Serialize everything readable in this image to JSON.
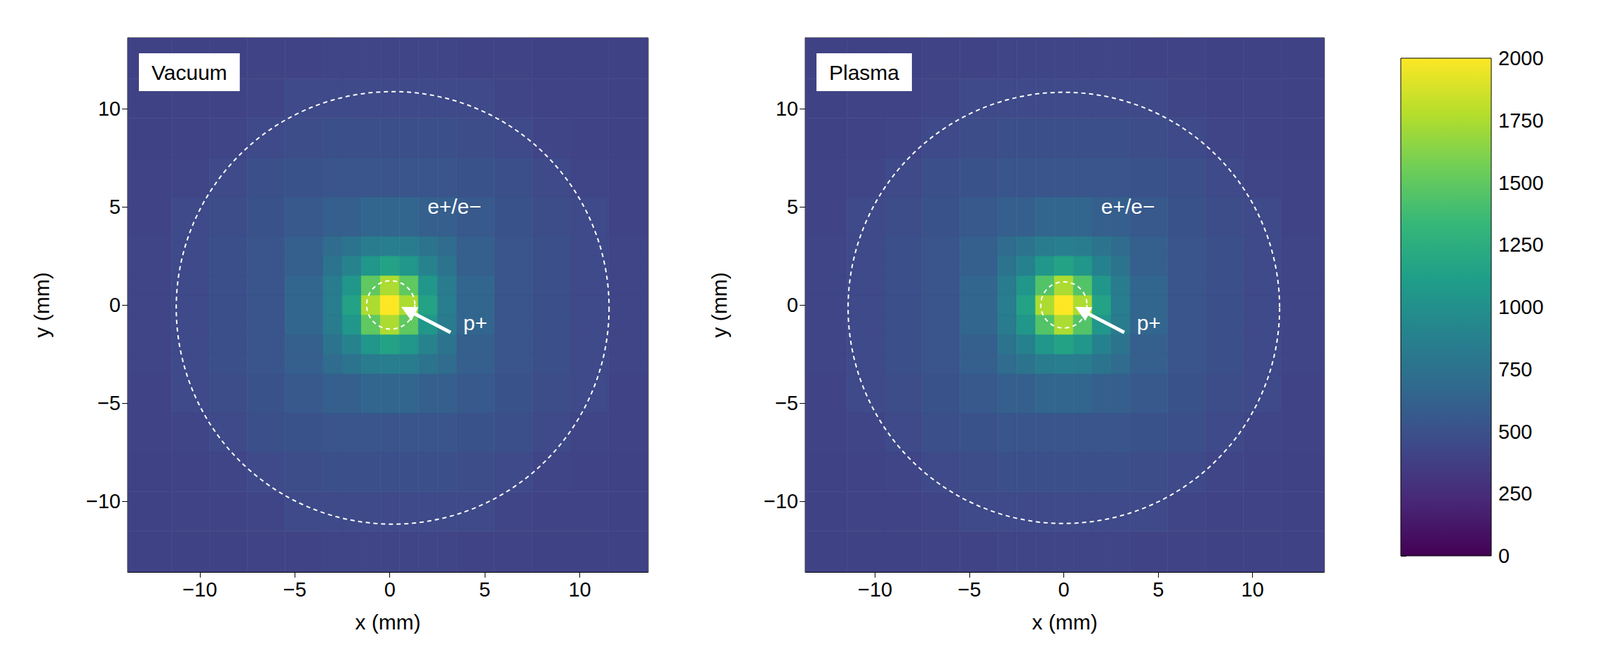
{
  "chart_data": [
    {
      "type": "heatmap",
      "title": "Vacuum",
      "xlabel": "x (mm)",
      "ylabel": "y (mm)",
      "xlim": [
        -13.8,
        13.6
      ],
      "ylim": [
        -13.6,
        13.6
      ],
      "xticks": [
        {
          "value": -10,
          "label": "−10"
        },
        {
          "value": -5,
          "label": "−5"
        },
        0,
        5,
        10
      ],
      "yticks": [
        {
          "value": -10,
          "label": "−10"
        },
        {
          "value": -5,
          "label": "−5"
        },
        0,
        5,
        10
      ],
      "cells": {
        "x_edges": [
          -13.8,
          -11.5,
          -9.5,
          -7.5,
          -5.5,
          -3.5,
          -2.5,
          -1.5,
          -0.5,
          0.5,
          1.5,
          2.5,
          3.5,
          5.5,
          7.5,
          9.5,
          11.5,
          13.6
        ],
        "y_edges": [
          -13.6,
          -11.5,
          -9.5,
          -7.5,
          -5.5,
          -3.5,
          -2.5,
          -1.5,
          -0.5,
          0.5,
          1.5,
          2.5,
          3.5,
          5.5,
          7.5,
          9.5,
          11.5,
          13.6
        ],
        "values": [
          [
            400,
            400,
            400,
            410,
            410,
            420,
            420,
            420,
            420,
            420,
            420,
            420,
            410,
            410,
            400,
            400,
            400
          ],
          [
            400,
            410,
            410,
            420,
            450,
            450,
            450,
            450,
            450,
            450,
            450,
            450,
            450,
            420,
            410,
            410,
            400
          ],
          [
            400,
            410,
            420,
            450,
            470,
            490,
            490,
            490,
            490,
            490,
            490,
            490,
            470,
            450,
            420,
            410,
            400
          ],
          [
            410,
            420,
            450,
            490,
            510,
            530,
            530,
            530,
            530,
            530,
            530,
            530,
            510,
            490,
            450,
            420,
            410
          ],
          [
            410,
            450,
            470,
            510,
            560,
            600,
            600,
            650,
            650,
            650,
            600,
            600,
            560,
            510,
            470,
            450,
            410
          ],
          [
            420,
            450,
            490,
            530,
            600,
            700,
            760,
            830,
            850,
            830,
            760,
            700,
            600,
            530,
            490,
            450,
            420
          ],
          [
            420,
            450,
            490,
            530,
            600,
            760,
            900,
            1050,
            1150,
            1050,
            900,
            760,
            600,
            530,
            490,
            450,
            420
          ],
          [
            420,
            450,
            490,
            530,
            650,
            830,
            1050,
            1500,
            1750,
            1500,
            1050,
            830,
            650,
            530,
            490,
            450,
            420
          ],
          [
            420,
            450,
            490,
            530,
            650,
            850,
            1150,
            1750,
            2000,
            1750,
            1150,
            850,
            650,
            530,
            490,
            450,
            420
          ],
          [
            420,
            450,
            490,
            530,
            650,
            830,
            1050,
            1500,
            1750,
            1500,
            1050,
            830,
            650,
            530,
            490,
            450,
            420
          ],
          [
            420,
            450,
            490,
            530,
            600,
            760,
            900,
            1050,
            1150,
            1050,
            900,
            760,
            600,
            530,
            490,
            450,
            420
          ],
          [
            420,
            450,
            490,
            530,
            600,
            700,
            760,
            830,
            850,
            830,
            760,
            700,
            600,
            530,
            490,
            450,
            420
          ],
          [
            410,
            450,
            470,
            510,
            560,
            600,
            600,
            650,
            650,
            650,
            600,
            600,
            560,
            510,
            470,
            450,
            410
          ],
          [
            410,
            420,
            450,
            490,
            510,
            530,
            530,
            530,
            530,
            530,
            530,
            530,
            510,
            490,
            450,
            420,
            410
          ],
          [
            400,
            410,
            420,
            450,
            470,
            490,
            490,
            490,
            490,
            490,
            490,
            490,
            470,
            450,
            420,
            410,
            400
          ],
          [
            400,
            410,
            410,
            420,
            450,
            450,
            450,
            450,
            450,
            450,
            450,
            450,
            450,
            420,
            410,
            410,
            400
          ],
          [
            400,
            400,
            400,
            410,
            410,
            420,
            420,
            420,
            420,
            420,
            420,
            420,
            410,
            410,
            400,
            400,
            400
          ]
        ]
      },
      "circles": [
        {
          "center": [
            0.15,
            -0.15
          ],
          "radius": 11.2
        },
        {
          "center": [
            0.05,
            0.0
          ],
          "radius": 1.25
        }
      ],
      "annotations": [
        {
          "text": "e+/e−",
          "x": 3.4,
          "y": 5.0
        },
        {
          "text": "p+",
          "x": 4.5,
          "y": -0.9
        }
      ],
      "arrows": [
        {
          "from": [
            3.2,
            -1.4
          ],
          "to": [
            0.6,
            -0.1
          ]
        }
      ]
    },
    {
      "type": "heatmap",
      "title": "Plasma",
      "xlabel": "x (mm)",
      "ylabel": "y (mm)",
      "xlim": [
        -13.7,
        13.8
      ],
      "ylim": [
        -13.6,
        13.6
      ],
      "xticks": [
        {
          "value": -10,
          "label": "−10"
        },
        {
          "value": -5,
          "label": "−5"
        },
        0,
        5,
        10
      ],
      "yticks": [
        {
          "value": -10,
          "label": "−10"
        },
        {
          "value": -5,
          "label": "−5"
        },
        0,
        5,
        10
      ],
      "cells": {
        "x_edges": [
          -13.7,
          -11.5,
          -9.5,
          -7.5,
          -5.5,
          -3.5,
          -2.5,
          -1.5,
          -0.5,
          0.5,
          1.5,
          2.5,
          3.5,
          5.5,
          7.5,
          9.5,
          11.5,
          13.8
        ],
        "y_edges": [
          -13.6,
          -11.5,
          -9.5,
          -7.5,
          -5.5,
          -3.5,
          -2.5,
          -1.5,
          -0.5,
          0.5,
          1.5,
          2.5,
          3.5,
          5.5,
          7.5,
          9.5,
          11.5,
          13.6
        ],
        "values": [
          [
            400,
            400,
            400,
            410,
            410,
            420,
            420,
            420,
            420,
            420,
            420,
            420,
            410,
            410,
            400,
            400,
            400
          ],
          [
            400,
            410,
            410,
            420,
            450,
            450,
            450,
            450,
            450,
            450,
            450,
            450,
            450,
            420,
            410,
            410,
            400
          ],
          [
            400,
            410,
            420,
            450,
            470,
            490,
            490,
            490,
            490,
            490,
            490,
            490,
            470,
            450,
            420,
            410,
            400
          ],
          [
            410,
            420,
            450,
            490,
            510,
            530,
            530,
            530,
            530,
            530,
            530,
            530,
            510,
            490,
            450,
            420,
            410
          ],
          [
            410,
            450,
            470,
            510,
            560,
            600,
            600,
            650,
            650,
            650,
            600,
            600,
            560,
            510,
            470,
            450,
            410
          ],
          [
            420,
            450,
            490,
            530,
            600,
            700,
            760,
            830,
            850,
            830,
            760,
            700,
            600,
            530,
            490,
            450,
            420
          ],
          [
            420,
            450,
            490,
            530,
            600,
            760,
            880,
            1050,
            1150,
            1050,
            880,
            760,
            600,
            530,
            490,
            450,
            420
          ],
          [
            420,
            450,
            490,
            530,
            650,
            830,
            1050,
            1450,
            1750,
            1450,
            1050,
            830,
            650,
            530,
            490,
            450,
            420
          ],
          [
            420,
            450,
            490,
            530,
            650,
            850,
            1150,
            1750,
            2000,
            1750,
            1150,
            850,
            650,
            530,
            490,
            450,
            420
          ],
          [
            420,
            450,
            490,
            530,
            650,
            830,
            1050,
            1450,
            1750,
            1450,
            1050,
            830,
            650,
            530,
            490,
            450,
            420
          ],
          [
            420,
            450,
            490,
            530,
            600,
            760,
            880,
            1050,
            1150,
            1050,
            880,
            760,
            600,
            530,
            490,
            450,
            420
          ],
          [
            420,
            450,
            490,
            530,
            600,
            700,
            760,
            830,
            850,
            830,
            760,
            700,
            600,
            530,
            490,
            450,
            420
          ],
          [
            410,
            450,
            470,
            510,
            560,
            600,
            600,
            650,
            650,
            650,
            600,
            600,
            560,
            510,
            470,
            450,
            410
          ],
          [
            410,
            420,
            450,
            490,
            510,
            530,
            530,
            530,
            530,
            530,
            530,
            530,
            510,
            490,
            450,
            420,
            410
          ],
          [
            400,
            410,
            420,
            450,
            470,
            490,
            490,
            490,
            490,
            490,
            490,
            490,
            470,
            450,
            420,
            410,
            400
          ],
          [
            400,
            410,
            410,
            420,
            450,
            450,
            450,
            450,
            450,
            450,
            450,
            450,
            450,
            420,
            410,
            410,
            400
          ],
          [
            400,
            400,
            400,
            410,
            410,
            420,
            420,
            420,
            420,
            420,
            420,
            420,
            410,
            410,
            400,
            400,
            400
          ]
        ]
      },
      "circles": [
        {
          "center": [
            0.0,
            -0.15
          ],
          "radius": 11.2
        },
        {
          "center": [
            0.0,
            0.0
          ],
          "radius": 1.2
        }
      ],
      "annotations": [
        {
          "text": "e+/e−",
          "x": 3.4,
          "y": 5.0
        },
        {
          "text": "p+",
          "x": 4.5,
          "y": -0.9
        }
      ],
      "arrows": [
        {
          "from": [
            3.2,
            -1.4
          ],
          "to": [
            0.6,
            -0.1
          ]
        }
      ]
    }
  ],
  "colorbar": {
    "range": [
      0,
      2000
    ],
    "ticks": [
      0,
      250,
      500,
      750,
      1000,
      1250,
      1500,
      1750,
      2000
    ]
  }
}
